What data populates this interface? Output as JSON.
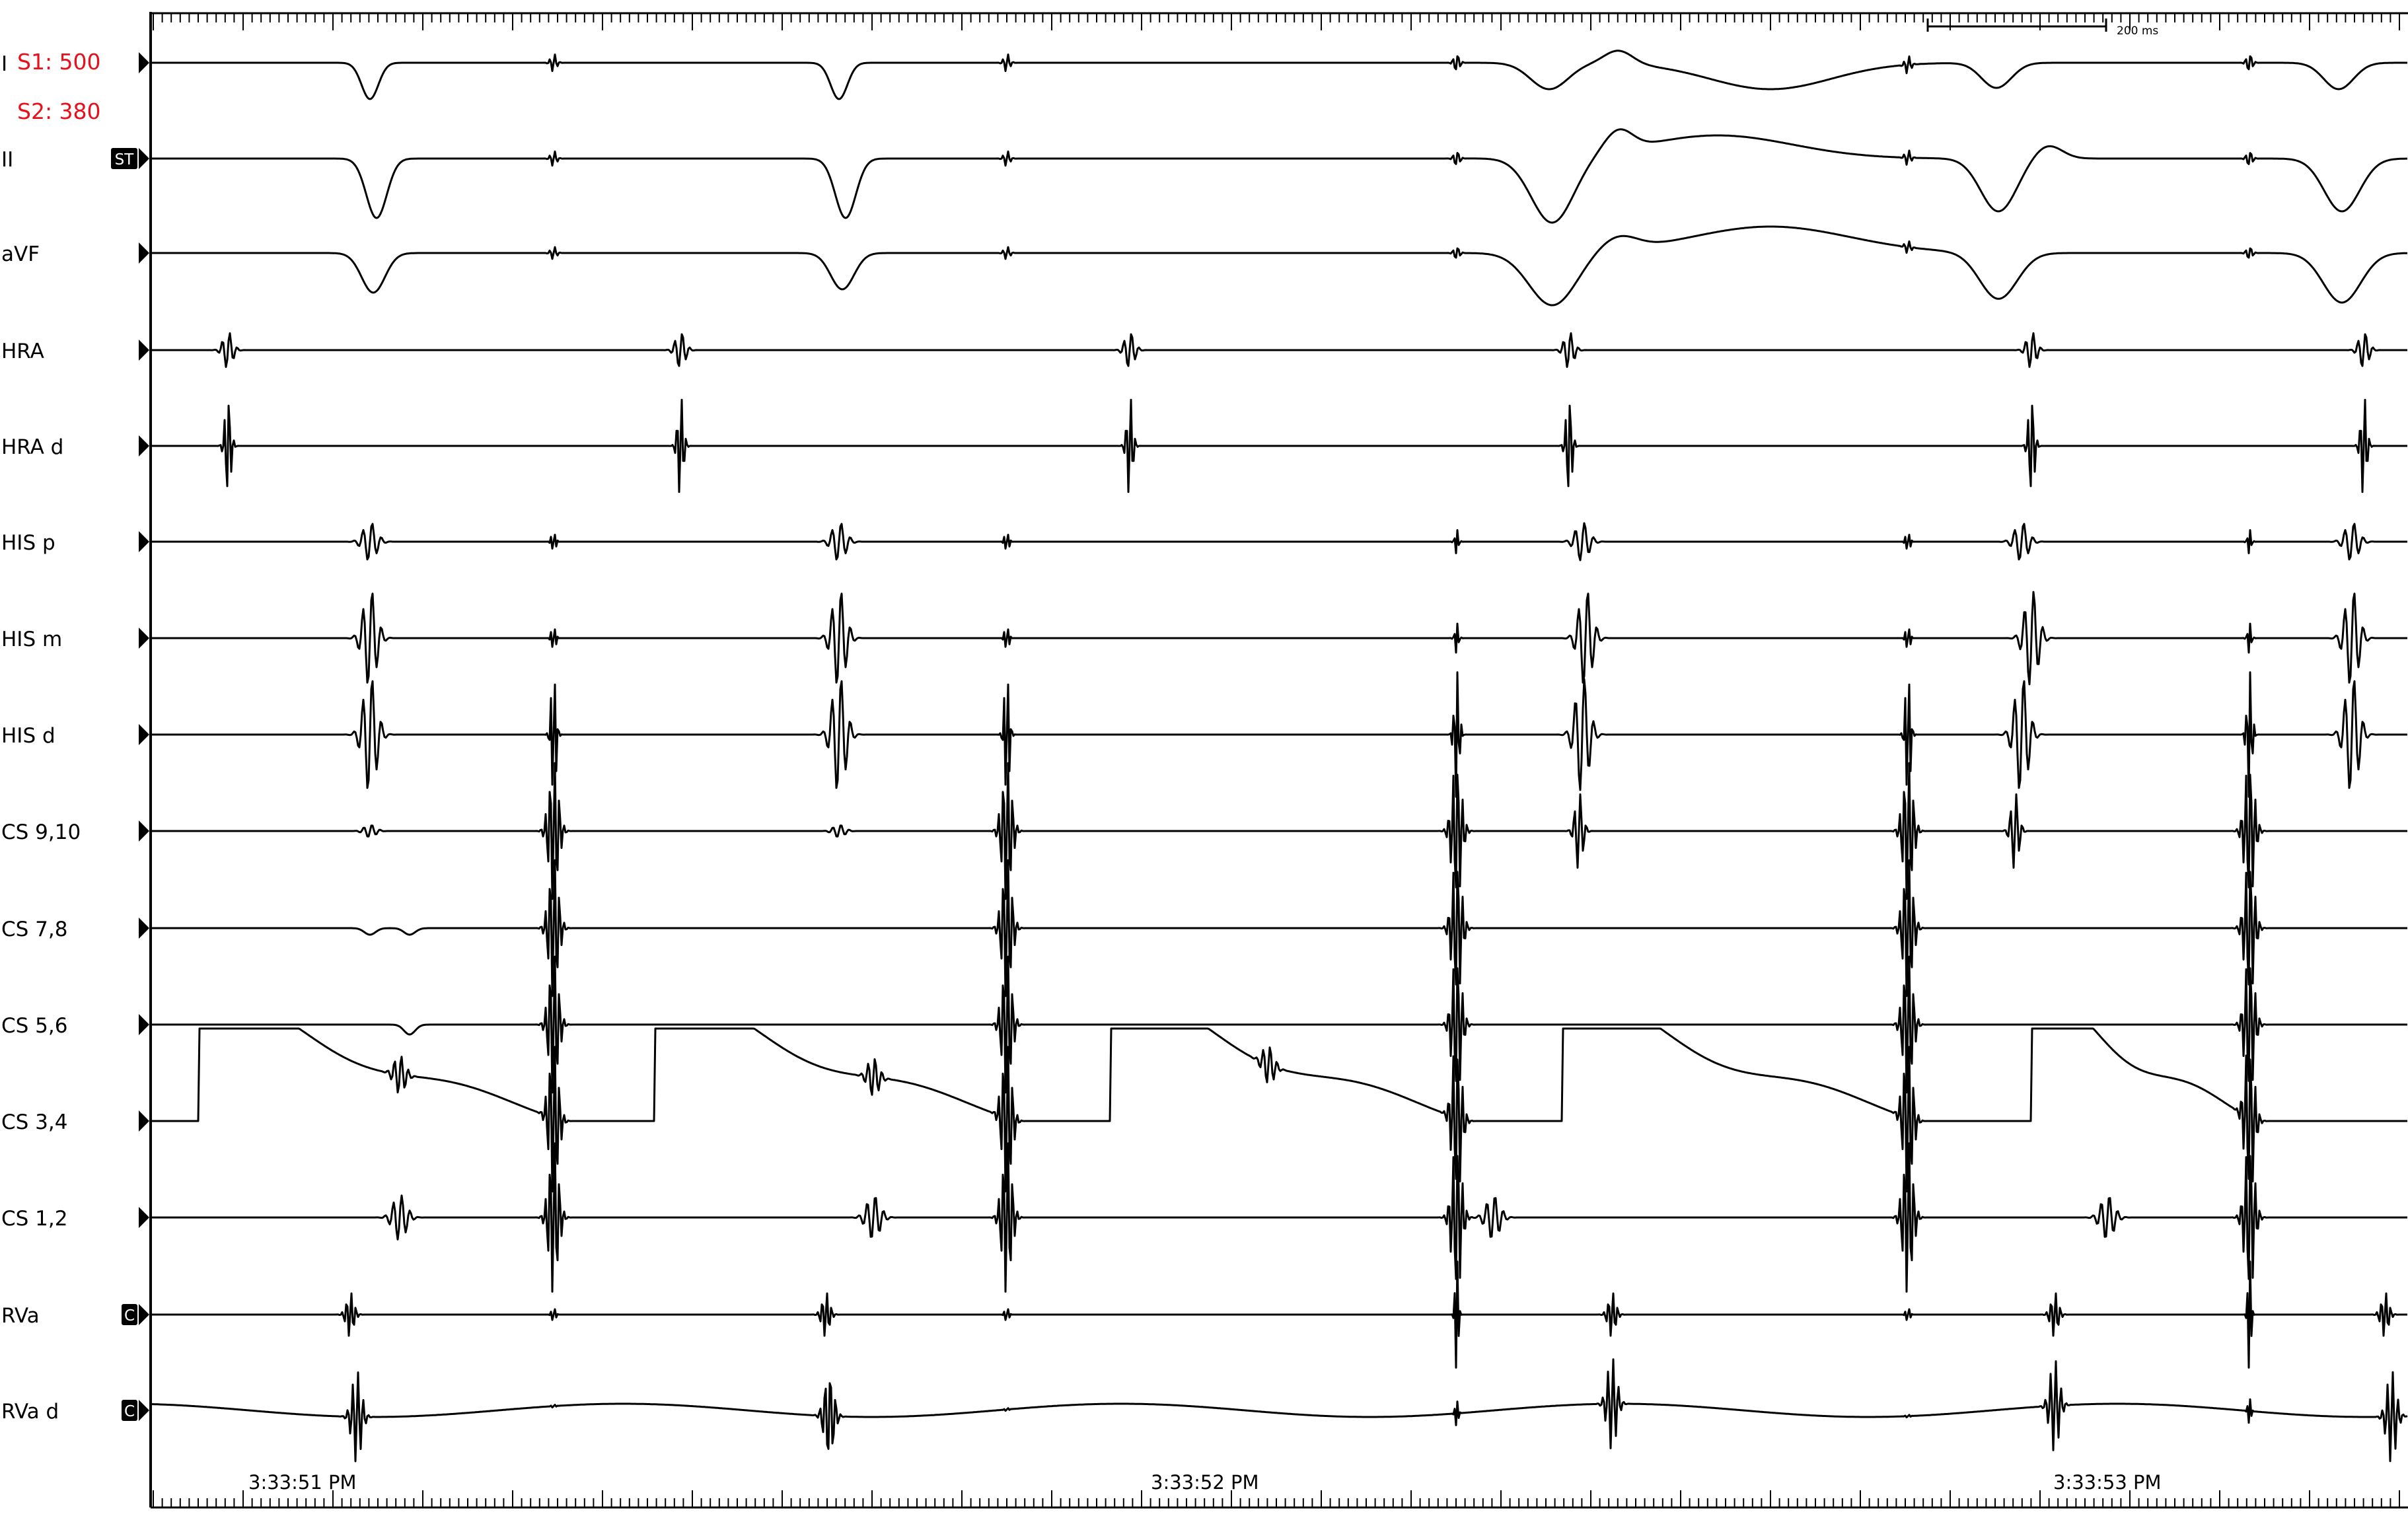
{
  "stimulation": {
    "s1": "S1: 500",
    "s2": "S2: 380"
  },
  "scale_bar": {
    "label": "200 ms"
  },
  "channels": [
    {
      "label": "I",
      "marker": ""
    },
    {
      "label": "II",
      "marker": "ST"
    },
    {
      "label": "aVF",
      "marker": ""
    },
    {
      "label": "HRA",
      "marker": ""
    },
    {
      "label": "HRA d",
      "marker": ""
    },
    {
      "label": "HIS p",
      "marker": ""
    },
    {
      "label": "HIS m",
      "marker": ""
    },
    {
      "label": "HIS d",
      "marker": ""
    },
    {
      "label": "CS 9,10",
      "marker": ""
    },
    {
      "label": "CS 7,8",
      "marker": ""
    },
    {
      "label": "CS 5,6",
      "marker": ""
    },
    {
      "label": "CS 3,4",
      "marker": ""
    },
    {
      "label": "CS 1,2",
      "marker": ""
    },
    {
      "label": "RVa",
      "marker": "C"
    },
    {
      "label": "RVa d",
      "marker": "C"
    }
  ],
  "timestamps": [
    "3:33:51 PM",
    "3:33:52 PM",
    "3:33:53 PM"
  ],
  "colors": {
    "annotation": "#e8101a",
    "trace": "#000000",
    "background": "#ffffff",
    "marker_box": "#000000",
    "marker_text": "#ffffff"
  }
}
